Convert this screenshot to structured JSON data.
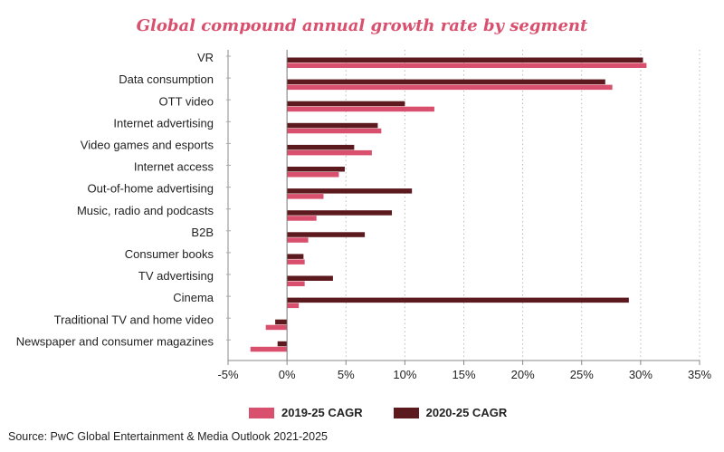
{
  "chart_data": {
    "type": "bar",
    "orientation": "horizontal",
    "title": "Global compound annual growth rate by segment",
    "categories": [
      "VR",
      "Data consumption",
      "OTT video",
      "Internet advertising",
      "Video games and esports",
      "Internet access",
      "Out-of-home advertising",
      "Music, radio and podcasts",
      "B2B",
      "Consumer books",
      "TV advertising",
      "Cinema",
      "Traditional TV and home video",
      "Newspaper and consumer magazines"
    ],
    "series": [
      {
        "name": "2020-25 CAGR",
        "color": "#5c1a1f",
        "values": [
          30.2,
          27.0,
          10.0,
          7.7,
          5.7,
          4.9,
          10.6,
          8.9,
          6.6,
          1.4,
          3.9,
          29.0,
          -1.0,
          -0.8
        ]
      },
      {
        "name": "2019-25 CAGR",
        "color": "#d94f6e",
        "values": [
          30.5,
          27.6,
          12.5,
          8.0,
          7.2,
          4.4,
          3.1,
          2.5,
          1.8,
          1.5,
          1.5,
          1.0,
          -1.8,
          -3.1
        ]
      }
    ],
    "xlim": [
      -5,
      35
    ],
    "xticks": [
      "-5%",
      "0%",
      "5%",
      "10%",
      "15%",
      "20%",
      "25%",
      "30%",
      "35%"
    ],
    "xtick_values": [
      -5,
      0,
      5,
      10,
      15,
      20,
      25,
      30,
      35
    ],
    "grid": "vertical-dotted",
    "legend": "bottom-center"
  },
  "legend": {
    "items": [
      {
        "label": "2019-25 CAGR",
        "color": "#d94f6e"
      },
      {
        "label": "2020-25 CAGR",
        "color": "#5c1a1f"
      }
    ]
  },
  "source": "Source: PwC Global Entertainment & Media Outlook 2021-2025"
}
